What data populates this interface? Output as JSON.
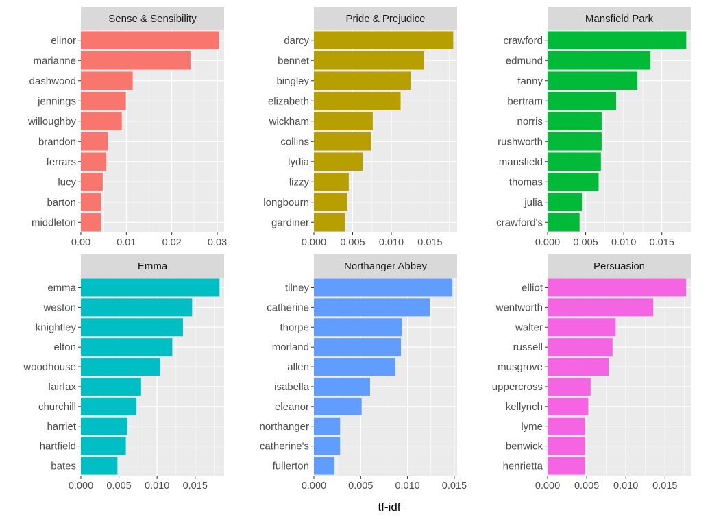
{
  "chart_data": {
    "type": "bar",
    "orientation": "horizontal",
    "xlabel": "tf-idf",
    "ylabel": "",
    "grid": true,
    "legend": "none",
    "facets": [
      {
        "title": "Sense & Sensibility",
        "color": "#F8766D",
        "xlim": [
          0,
          0.0315
        ],
        "ticks": [
          0,
          0.01,
          0.02,
          0.03
        ],
        "tick_labels": [
          "0.00",
          "0.01",
          "0.02",
          "0.03"
        ],
        "categories": [
          "elinor",
          "marianne",
          "dashwood",
          "jennings",
          "willoughby",
          "brandon",
          "ferrars",
          "lucy",
          "barton",
          "middleton"
        ],
        "values": [
          0.0304,
          0.0241,
          0.0114,
          0.0099,
          0.009,
          0.0059,
          0.0056,
          0.0048,
          0.0044,
          0.0044
        ]
      },
      {
        "title": "Pride & Prejudice",
        "color": "#B79F00",
        "xlim": [
          0,
          0.0185
        ],
        "ticks": [
          0,
          0.005,
          0.01,
          0.015
        ],
        "tick_labels": [
          "0.000",
          "0.005",
          "0.010",
          "0.015"
        ],
        "categories": [
          "darcy",
          "bennet",
          "bingley",
          "elizabeth",
          "wickham",
          "collins",
          "lydia",
          "lizzy",
          "longbourn",
          "gardiner"
        ],
        "values": [
          0.018,
          0.0142,
          0.0125,
          0.0112,
          0.0076,
          0.0074,
          0.0063,
          0.0045,
          0.0043,
          0.004
        ]
      },
      {
        "title": "Mansfield Park",
        "color": "#00BA38",
        "xlim": [
          0,
          0.0188
        ],
        "ticks": [
          0,
          0.005,
          0.01,
          0.015
        ],
        "tick_labels": [
          "0.000",
          "0.005",
          "0.010",
          "0.015"
        ],
        "categories": [
          "crawford",
          "edmund",
          "fanny",
          "bertram",
          "norris",
          "rushworth",
          "mansfield",
          "thomas",
          "julia",
          "crawford's"
        ],
        "values": [
          0.0182,
          0.0135,
          0.0118,
          0.009,
          0.0071,
          0.0071,
          0.007,
          0.0067,
          0.0045,
          0.0042
        ]
      },
      {
        "title": "Emma",
        "color": "#00BFC4",
        "xlim": [
          0,
          0.0188
        ],
        "ticks": [
          0,
          0.005,
          0.01,
          0.015
        ],
        "tick_labels": [
          "0.000",
          "0.005",
          "0.010",
          "0.015"
        ],
        "categories": [
          "emma",
          "weston",
          "knightley",
          "elton",
          "woodhouse",
          "fairfax",
          "churchill",
          "harriet",
          "hartfield",
          "bates"
        ],
        "values": [
          0.0182,
          0.0146,
          0.0134,
          0.012,
          0.0104,
          0.0079,
          0.0073,
          0.0061,
          0.0059,
          0.0048
        ]
      },
      {
        "title": "Northanger Abbey",
        "color": "#619CFF",
        "xlim": [
          0,
          0.0153
        ],
        "ticks": [
          0,
          0.005,
          0.01,
          0.015
        ],
        "tick_labels": [
          "0.000",
          "0.005",
          "0.010",
          "0.015"
        ],
        "categories": [
          "tilney",
          "catherine",
          "thorpe",
          "morland",
          "allen",
          "isabella",
          "eleanor",
          "northanger",
          "catherine's",
          "fullerton"
        ],
        "values": [
          0.0148,
          0.0124,
          0.0094,
          0.0093,
          0.0087,
          0.006,
          0.0051,
          0.0028,
          0.0028,
          0.0022
        ]
      },
      {
        "title": "Persuasion",
        "color": "#F564E3",
        "xlim": [
          0,
          0.0183
        ],
        "ticks": [
          0,
          0.005,
          0.01,
          0.015
        ],
        "tick_labels": [
          "0.000",
          "0.005",
          "0.010",
          "0.015"
        ],
        "categories": [
          "elliot",
          "wentworth",
          "walter",
          "russell",
          "musgrove",
          "uppercross",
          "kellynch",
          "lyme",
          "benwick",
          "henrietta"
        ],
        "values": [
          0.0177,
          0.0135,
          0.0087,
          0.0083,
          0.0078,
          0.0055,
          0.0052,
          0.0048,
          0.0048,
          0.0048
        ]
      }
    ]
  }
}
